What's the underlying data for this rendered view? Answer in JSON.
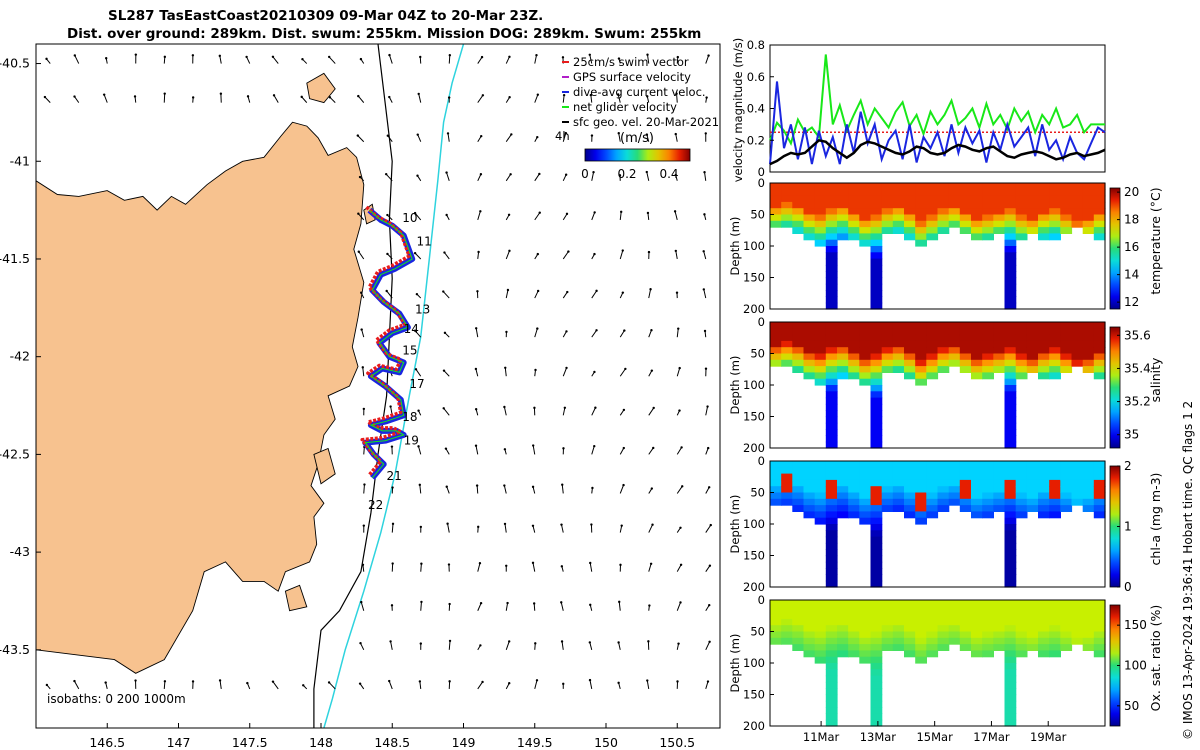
{
  "figure": {
    "title_line1": "SL287 TasEastCoast20210309 09-Mar 04Z to 20-Mar 23Z.",
    "title_line2": "Dist. over ground: 289km. Dist. swum: 255km. Mission DOG: 289km. Swum: 255km",
    "credit": "© IMOS 13-Apr-2024 19:36:41 Hobart time. QC flags 1  2"
  },
  "colors": {
    "land": "#f7c28f",
    "coast": "#000000",
    "isobath200": "#000000",
    "isobath1000": "#2ed3de",
    "track": "#e81c1c",
    "dac": "#1a26e0",
    "net": "#18e818",
    "sfc": "#000000"
  },
  "chart_data": [
    {
      "id": "map",
      "type": "scatter",
      "title": "",
      "xlabel": "",
      "ylabel": "",
      "xlim": [
        146.0,
        150.8
      ],
      "ylim": [
        -43.9,
        -40.4
      ],
      "xticks": [
        146.5,
        147,
        147.5,
        148,
        148.5,
        149,
        149.5,
        150,
        150.5
      ],
      "xtick_labels": [
        "146.5",
        "147",
        "147.5",
        "148",
        "148.5",
        "149",
        "149.5",
        "150",
        "150.5"
      ],
      "yticks": [
        -40.5,
        -41,
        -41.5,
        -42,
        -42.5,
        -43,
        -43.5
      ],
      "ytick_labels": [
        "-40.5",
        "-41",
        "-41.5",
        "-42",
        "-42.5",
        "-43",
        "-43.5"
      ],
      "legend": {
        "items": [
          {
            "label": "25cm/s swim vector",
            "color": "#e81c1c"
          },
          {
            "label": "GPS surface velocity",
            "color": "#b01ec8"
          },
          {
            "label": "dive-avg current veloc.",
            "color": "#1a26e0"
          },
          {
            "label": "net glider velocity",
            "color": "#18e818"
          },
          {
            "label": "sfc geo. vel. 20-Mar-2021",
            "color": "#000000"
          }
        ],
        "period_label": "4h",
        "placement": "top-right"
      },
      "colorbar": {
        "label": "(m/s)",
        "ticks": [
          "0",
          "0.2",
          "0.4"
        ],
        "range": [
          0,
          0.5
        ]
      },
      "isobath_label": "isobaths: 0   200  1000m",
      "track_lon": [
        148.34,
        148.42,
        148.5,
        148.58,
        148.64,
        148.52,
        148.42,
        148.36,
        148.44,
        148.55,
        148.61,
        148.5,
        148.41,
        148.48,
        148.58,
        148.55,
        148.43,
        148.35,
        148.45,
        148.56,
        148.58,
        148.46,
        148.35,
        148.43,
        148.53,
        148.58,
        148.45,
        148.31,
        148.37,
        148.44,
        148.36
      ],
      "track_lat": [
        -41.25,
        -41.3,
        -41.33,
        -41.38,
        -41.5,
        -41.55,
        -41.58,
        -41.66,
        -41.72,
        -41.78,
        -41.85,
        -41.88,
        -41.93,
        -42.0,
        -42.03,
        -42.08,
        -42.06,
        -42.1,
        -42.15,
        -42.22,
        -42.3,
        -42.33,
        -42.35,
        -42.38,
        -42.38,
        -42.4,
        -42.43,
        -42.44,
        -42.5,
        -42.55,
        -42.62
      ],
      "day_labels": [
        {
          "lon": 148.57,
          "lat": -41.31,
          "text": "10"
        },
        {
          "lon": 148.67,
          "lat": -41.43,
          "text": "11"
        },
        {
          "lon": 148.66,
          "lat": -41.78,
          "text": "13"
        },
        {
          "lon": 148.58,
          "lat": -41.88,
          "text": "14"
        },
        {
          "lon": 148.57,
          "lat": -41.99,
          "text": "15"
        },
        {
          "lon": 148.62,
          "lat": -42.16,
          "text": "17"
        },
        {
          "lon": 148.57,
          "lat": -42.33,
          "text": "18"
        },
        {
          "lon": 148.58,
          "lat": -42.45,
          "text": "19"
        },
        {
          "lon": 148.46,
          "lat": -42.63,
          "text": "21"
        },
        {
          "lon": 148.33,
          "lat": -42.78,
          "text": "22"
        }
      ]
    },
    {
      "id": "velocity",
      "type": "line",
      "title": "",
      "ylabel": "velocity magnitude (m/s)",
      "xlabel": "",
      "xlim": [
        0,
        12
      ],
      "ylim": [
        0,
        0.8
      ],
      "yticks": [
        0,
        0.2,
        0.4,
        0.6,
        0.8
      ],
      "ytick_labels": [
        "0",
        "0.2",
        "0.4",
        "0.6",
        "0.8"
      ],
      "x": [
        0.0,
        0.25,
        0.5,
        0.75,
        1.0,
        1.25,
        1.5,
        1.75,
        2.0,
        2.25,
        2.5,
        2.75,
        3.0,
        3.25,
        3.5,
        3.75,
        4.0,
        4.25,
        4.5,
        4.75,
        5.0,
        5.25,
        5.5,
        5.75,
        6.0,
        6.25,
        6.5,
        6.75,
        7.0,
        7.25,
        7.5,
        7.75,
        8.0,
        8.25,
        8.5,
        8.75,
        9.0,
        9.25,
        9.5,
        9.75,
        10.0,
        10.25,
        10.5,
        10.75,
        11.0,
        11.25,
        11.5,
        11.75,
        12.0
      ],
      "series": [
        {
          "name": "net glider velocity",
          "color": "#18e818",
          "values": [
            0.2,
            0.31,
            0.26,
            0.18,
            0.33,
            0.25,
            0.28,
            0.22,
            0.74,
            0.3,
            0.42,
            0.26,
            0.36,
            0.45,
            0.3,
            0.4,
            0.34,
            0.28,
            0.38,
            0.44,
            0.29,
            0.36,
            0.24,
            0.38,
            0.3,
            0.36,
            0.45,
            0.3,
            0.34,
            0.4,
            0.28,
            0.43,
            0.3,
            0.36,
            0.27,
            0.4,
            0.32,
            0.38,
            0.25,
            0.36,
            0.3,
            0.4,
            0.28,
            0.3,
            0.36,
            0.25,
            0.3,
            0.3,
            0.3
          ]
        },
        {
          "name": "dive-avg current veloc.",
          "color": "#1a26e0",
          "values": [
            0.05,
            0.57,
            0.15,
            0.3,
            0.08,
            0.28,
            0.05,
            0.26,
            0.1,
            0.22,
            0.05,
            0.3,
            0.12,
            0.38,
            0.18,
            0.3,
            0.08,
            0.2,
            0.26,
            0.08,
            0.3,
            0.06,
            0.22,
            0.15,
            0.25,
            0.1,
            0.3,
            0.12,
            0.28,
            0.18,
            0.26,
            0.06,
            0.25,
            0.14,
            0.3,
            0.16,
            0.22,
            0.28,
            0.1,
            0.3,
            0.14,
            0.2,
            0.08,
            0.22,
            0.12,
            0.08,
            0.18,
            0.28,
            0.25
          ]
        },
        {
          "name": "sfc geo. vel.",
          "color": "#000000",
          "values": [
            0.05,
            0.07,
            0.1,
            0.12,
            0.11,
            0.12,
            0.16,
            0.2,
            0.19,
            0.15,
            0.12,
            0.09,
            0.12,
            0.17,
            0.19,
            0.18,
            0.16,
            0.14,
            0.12,
            0.11,
            0.13,
            0.16,
            0.15,
            0.12,
            0.11,
            0.12,
            0.15,
            0.17,
            0.16,
            0.14,
            0.13,
            0.15,
            0.16,
            0.13,
            0.1,
            0.09,
            0.11,
            0.12,
            0.13,
            0.12,
            0.1,
            0.08,
            0.09,
            0.11,
            0.12,
            0.1,
            0.11,
            0.12,
            0.14
          ]
        },
        {
          "name": "25cm/s swim vector",
          "color": "#e81c1c",
          "values": [
            0.25,
            0.25,
            0.25,
            0.25,
            0.25,
            0.25,
            0.25,
            0.25,
            0.25,
            0.25,
            0.25,
            0.25,
            0.25,
            0.25,
            0.25,
            0.25,
            0.25,
            0.25,
            0.25,
            0.25,
            0.25,
            0.25,
            0.25,
            0.25,
            0.25,
            0.25,
            0.25,
            0.25,
            0.25,
            0.25,
            0.25,
            0.25,
            0.25,
            0.25,
            0.25,
            0.25,
            0.25,
            0.25,
            0.25,
            0.25,
            0.25,
            0.25,
            0.25,
            0.25,
            0.25,
            0.25,
            0.25,
            0.25,
            0.25
          ]
        }
      ]
    },
    {
      "id": "temperature",
      "type": "heatmap",
      "ylabel": "Depth (m)",
      "ylim": [
        200,
        0
      ],
      "yticks": [
        0,
        50,
        100,
        150,
        200
      ],
      "ytick_labels": [
        "0",
        "50",
        "100",
        "150",
        "200"
      ],
      "colorbar": {
        "label": "temperature (°C)",
        "range": [
          11.5,
          20.3
        ],
        "ticks": [
          "12",
          "14",
          "16",
          "18",
          "20"
        ],
        "tick_values": [
          12,
          14,
          16,
          18,
          20
        ]
      },
      "surface_value": 19.2,
      "deep_value": 12.0,
      "mixed_layer_depth": [
        30,
        25,
        30,
        40,
        45,
        35,
        30,
        40,
        50,
        45,
        35,
        30,
        40,
        55,
        45,
        35,
        30,
        40,
        50,
        45,
        40,
        35,
        45,
        50,
        40,
        35,
        45,
        55,
        50,
        40
      ],
      "max_dive_depth": [
        65,
        70,
        75,
        90,
        100,
        200,
        85,
        90,
        95,
        200,
        80,
        75,
        85,
        95,
        90,
        80,
        70,
        80,
        90,
        85,
        80,
        200,
        90,
        80,
        85,
        90,
        80,
        70,
        75,
        85
      ]
    },
    {
      "id": "salinity",
      "type": "heatmap",
      "ylabel": "Depth (m)",
      "ylim": [
        200,
        0
      ],
      "yticks": [
        0,
        50,
        100,
        150,
        200
      ],
      "ytick_labels": [
        "0",
        "50",
        "100",
        "150",
        "200"
      ],
      "colorbar": {
        "label": "salinity",
        "range": [
          34.92,
          35.65
        ],
        "ticks": [
          "35",
          "35.2",
          "35.4",
          "35.6"
        ],
        "tick_values": [
          35.0,
          35.2,
          35.4,
          35.6
        ]
      },
      "surface_value": 35.62,
      "deep_value": 35.0,
      "mixed_layer_depth": [
        30,
        25,
        30,
        40,
        45,
        35,
        30,
        40,
        50,
        45,
        35,
        30,
        40,
        55,
        45,
        35,
        30,
        40,
        50,
        45,
        40,
        35,
        45,
        50,
        40,
        35,
        45,
        55,
        50,
        40
      ],
      "max_dive_depth": [
        65,
        70,
        75,
        90,
        100,
        200,
        85,
        90,
        95,
        200,
        80,
        75,
        85,
        95,
        90,
        80,
        70,
        80,
        90,
        85,
        80,
        200,
        90,
        80,
        85,
        90,
        80,
        70,
        75,
        85
      ]
    },
    {
      "id": "chla",
      "type": "heatmap",
      "ylabel": "Depth (m)",
      "ylim": [
        200,
        0
      ],
      "yticks": [
        0,
        50,
        100,
        150,
        200
      ],
      "ytick_labels": [
        "0",
        "50",
        "100",
        "150",
        "200"
      ],
      "colorbar": {
        "label": "chl-a (mg m-3)",
        "range": [
          0,
          2
        ],
        "ticks": [
          "0",
          "1",
          "2"
        ],
        "tick_values": [
          0,
          1,
          2
        ]
      },
      "surface_value": 0.7,
      "deep_value": 0.05,
      "mixed_layer_depth": [
        30,
        25,
        30,
        40,
        45,
        35,
        30,
        40,
        50,
        45,
        35,
        30,
        40,
        55,
        45,
        35,
        30,
        40,
        50,
        45,
        40,
        35,
        45,
        50,
        40,
        35,
        45,
        55,
        50,
        40
      ],
      "max_dive_depth": [
        65,
        70,
        75,
        90,
        100,
        200,
        85,
        90,
        95,
        200,
        80,
        75,
        85,
        95,
        90,
        80,
        70,
        80,
        90,
        85,
        80,
        200,
        90,
        80,
        85,
        90,
        80,
        70,
        75,
        85
      ]
    },
    {
      "id": "oxygen",
      "type": "heatmap",
      "xlabel": "",
      "ylabel": "Depth (m)",
      "ylim": [
        200,
        0
      ],
      "yticks": [
        0,
        50,
        100,
        150,
        200
      ],
      "ytick_labels": [
        "0",
        "50",
        "100",
        "150",
        "200"
      ],
      "xlim": [
        9.2,
        21.0
      ],
      "xticks": [
        11,
        13,
        15,
        17,
        19
      ],
      "xtick_labels": [
        "11Mar",
        "13Mar",
        "15Mar",
        "17Mar",
        "19Mar"
      ],
      "colorbar": {
        "label": "Ox. sat. ratio (%)",
        "range": [
          25,
          175
        ],
        "ticks": [
          "50",
          "100",
          "150"
        ],
        "tick_values": [
          50,
          100,
          150
        ]
      },
      "surface_value": 118,
      "deep_value": 92,
      "mixed_layer_depth": [
        30,
        25,
        30,
        40,
        45,
        35,
        30,
        40,
        50,
        45,
        35,
        30,
        40,
        55,
        45,
        35,
        30,
        40,
        50,
        45,
        40,
        35,
        45,
        50,
        40,
        35,
        45,
        55,
        50,
        40
      ],
      "max_dive_depth": [
        65,
        70,
        75,
        90,
        100,
        200,
        85,
        90,
        95,
        200,
        80,
        75,
        85,
        95,
        90,
        80,
        70,
        80,
        90,
        85,
        80,
        200,
        90,
        80,
        85,
        90,
        80,
        70,
        75,
        85
      ]
    }
  ]
}
